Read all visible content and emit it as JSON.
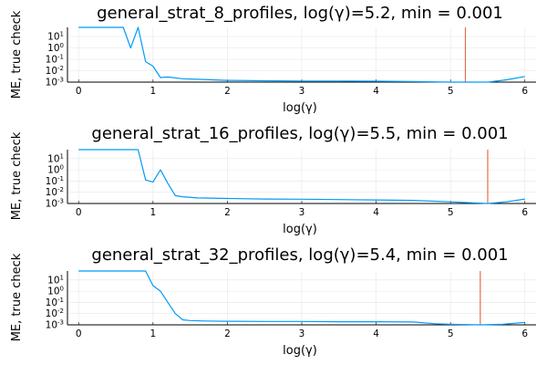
{
  "chart_data": [
    {
      "type": "line",
      "title": "general_strat_8_profiles, log(γ)=5.2, min = 0.001",
      "xlabel": "log(γ)",
      "ylabel": "ME, true check",
      "xlim": [
        -0.15,
        6.15
      ],
      "xticks": [
        "0",
        "1",
        "2",
        "3",
        "4",
        "5",
        "6"
      ],
      "ylim_log10": [
        -3,
        1.8
      ],
      "yticks": [
        {
          "base": "10",
          "exp": "1",
          "value_log10": 1
        },
        {
          "base": "10",
          "exp": "0",
          "value_log10": 0
        },
        {
          "base": "10",
          "exp": "-1",
          "value_log10": -1
        },
        {
          "base": "10",
          "exp": "-2",
          "value_log10": -2
        },
        {
          "base": "10",
          "exp": "-3",
          "value_log10": -3
        }
      ],
      "grid": true,
      "series": [
        {
          "x": [
            0,
            0.1,
            0.2,
            0.3,
            0.4,
            0.5,
            0.6,
            0.7,
            0.8,
            0.9,
            1.0,
            1.1,
            1.2,
            1.4,
            1.6,
            1.8,
            2.0,
            2.5,
            3.0,
            3.5,
            4.0,
            4.5,
            5.0,
            5.5,
            5.75,
            6.0
          ],
          "y_log10": [
            1.8,
            1.8,
            1.8,
            1.8,
            1.8,
            1.8,
            1.8,
            0.0,
            1.8,
            -1.2,
            -1.6,
            -2.6,
            -2.55,
            -2.7,
            -2.75,
            -2.8,
            -2.85,
            -2.88,
            -2.9,
            -2.9,
            -2.92,
            -2.95,
            -3.0,
            -3.0,
            -2.8,
            -2.5
          ]
        }
      ],
      "vline_x": 5.2,
      "colors": {
        "series": "#009AFA",
        "vline": "#E26F46"
      }
    },
    {
      "type": "line",
      "title": "general_strat_16_profiles, log(γ)=5.5, min = 0.001",
      "xlabel": "log(γ)",
      "ylabel": "ME, true check",
      "xlim": [
        -0.15,
        6.15
      ],
      "xticks": [
        "0",
        "1",
        "2",
        "3",
        "4",
        "5",
        "6"
      ],
      "ylim_log10": [
        -3,
        1.8
      ],
      "yticks": [
        {
          "base": "10",
          "exp": "1",
          "value_log10": 1
        },
        {
          "base": "10",
          "exp": "0",
          "value_log10": 0
        },
        {
          "base": "10",
          "exp": "-1",
          "value_log10": -1
        },
        {
          "base": "10",
          "exp": "-2",
          "value_log10": -2
        },
        {
          "base": "10",
          "exp": "-3",
          "value_log10": -3
        }
      ],
      "grid": true,
      "series": [
        {
          "x": [
            0,
            0.2,
            0.4,
            0.6,
            0.8,
            0.9,
            1.0,
            1.1,
            1.2,
            1.3,
            1.4,
            1.6,
            2.0,
            2.5,
            3.0,
            3.5,
            4.0,
            4.5,
            5.0,
            5.5,
            5.75,
            6.0
          ],
          "y_log10": [
            1.8,
            1.8,
            1.8,
            1.8,
            1.8,
            -0.9,
            -1.1,
            0.0,
            -1.2,
            -2.3,
            -2.4,
            -2.5,
            -2.55,
            -2.6,
            -2.62,
            -2.65,
            -2.68,
            -2.72,
            -2.85,
            -3.0,
            -2.85,
            -2.6
          ]
        }
      ],
      "vline_x": 5.5,
      "colors": {
        "series": "#009AFA",
        "vline": "#E26F46"
      }
    },
    {
      "type": "line",
      "title": "general_strat_32_profiles, log(γ)=5.4, min = 0.001",
      "xlabel": "log(γ)",
      "ylabel": "ME, true check",
      "xlim": [
        -0.15,
        6.15
      ],
      "xticks": [
        "0",
        "1",
        "2",
        "3",
        "4",
        "5",
        "6"
      ],
      "ylim_log10": [
        -3,
        1.8
      ],
      "yticks": [
        {
          "base": "10",
          "exp": "1",
          "value_log10": 1
        },
        {
          "base": "10",
          "exp": "0",
          "value_log10": 0
        },
        {
          "base": "10",
          "exp": "-1",
          "value_log10": -1
        },
        {
          "base": "10",
          "exp": "-2",
          "value_log10": -2
        },
        {
          "base": "10",
          "exp": "-3",
          "value_log10": -3
        }
      ],
      "grid": true,
      "series": [
        {
          "x": [
            0,
            0.2,
            0.4,
            0.6,
            0.8,
            0.9,
            1.0,
            1.1,
            1.2,
            1.3,
            1.4,
            1.5,
            1.7,
            2.0,
            2.5,
            3.0,
            3.5,
            4.0,
            4.5,
            4.8,
            5.0,
            5.4,
            5.7,
            6.0
          ],
          "y_log10": [
            1.8,
            1.8,
            1.8,
            1.8,
            1.8,
            1.8,
            0.5,
            0.0,
            -1.0,
            -2.0,
            -2.55,
            -2.62,
            -2.66,
            -2.68,
            -2.7,
            -2.7,
            -2.72,
            -2.72,
            -2.75,
            -2.9,
            -2.95,
            -3.0,
            -2.95,
            -2.78
          ]
        }
      ],
      "vline_x": 5.4,
      "colors": {
        "series": "#009AFA",
        "vline": "#E26F46"
      }
    }
  ]
}
